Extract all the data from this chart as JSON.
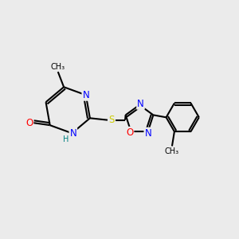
{
  "bg_color": "#ebebeb",
  "bond_color": "#000000",
  "bond_width": 1.5,
  "atom_colors": {
    "N": "#0000ff",
    "O": "#ff0000",
    "S": "#cccc00",
    "C": "#000000",
    "H": "#008080"
  },
  "font_size": 8.5,
  "fig_size": [
    3.0,
    3.0
  ],
  "dpi": 100
}
